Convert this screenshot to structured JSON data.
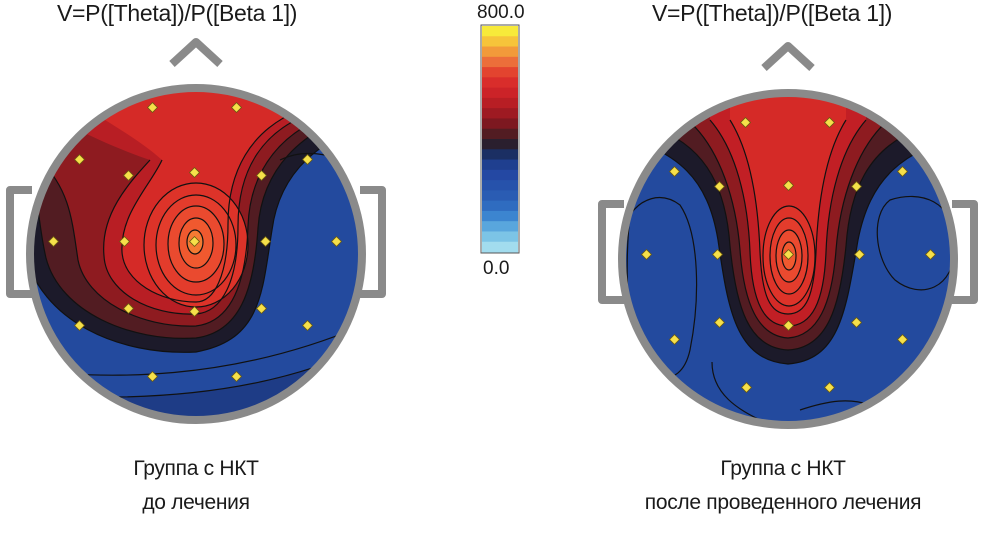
{
  "maps": [
    {
      "title": "V=P([Theta])/P([Beta 1])",
      "caption_line1": "Группа с НКТ",
      "caption_line2": "до лечения"
    },
    {
      "title": "V=P([Theta])/P([Beta 1])",
      "caption_line1": "Группа с НКТ",
      "caption_line2": "после проведенного лечения"
    }
  ],
  "colorbar": {
    "max_label": "800.0",
    "min_label": "0.0",
    "colors": [
      "#f7ea3a",
      "#f6c43a",
      "#f29a3a",
      "#ec6e3a",
      "#e3442f",
      "#d92d2b",
      "#cc2328",
      "#b81e24",
      "#9e1a22",
      "#7d1820",
      "#521c22",
      "#2a1f2e",
      "#1b2f63",
      "#1f3f8f",
      "#2448a3",
      "#2652ab",
      "#2a5cb3",
      "#2f6cc0",
      "#3c85d0",
      "#59a6dd",
      "#7cc4e6",
      "#a2dcee"
    ]
  },
  "colors": {
    "head_outline": "#8a8a8a",
    "electrode": "#f6e04a",
    "red_peak": "#ee4a2e",
    "red": "#d52a27",
    "dark_red": "#8e1b20",
    "near_black": "#1c1a2a",
    "blue": "#234a9e",
    "deep_blue": "#1e3c86"
  }
}
